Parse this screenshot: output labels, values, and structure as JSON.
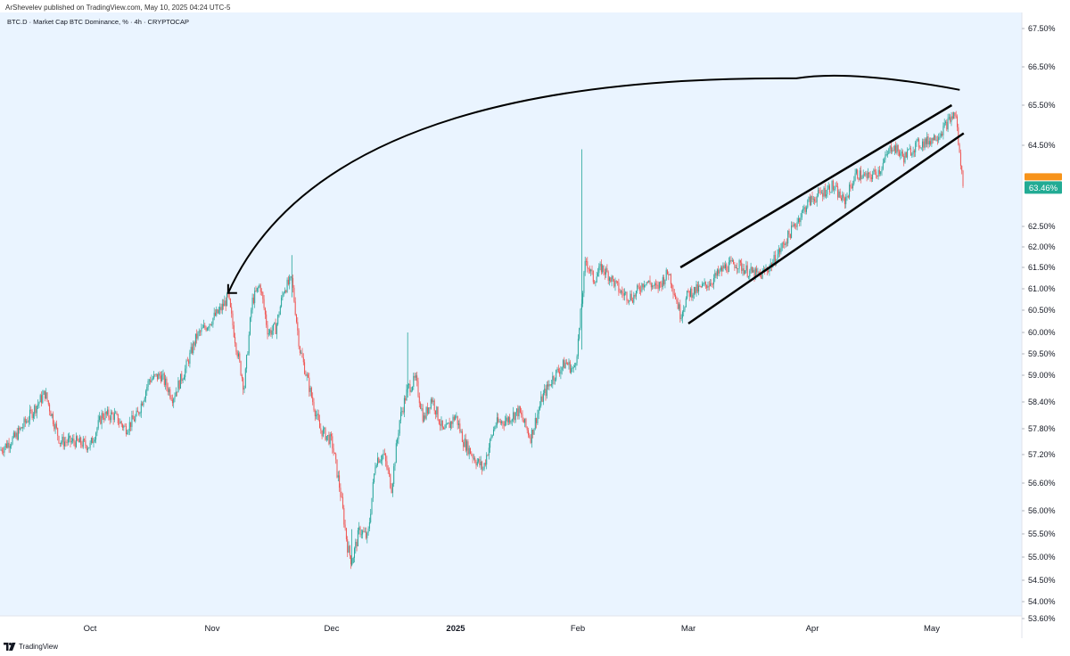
{
  "header": {
    "publish_line": "ArShevelev published on TradingView.com, May 10, 2025 04:24 UTC-5"
  },
  "chart_data": {
    "type": "candlestick",
    "title": "BTC.D · Market Cap BTC Dominance, % · 4h · CRYPTOCAP",
    "ylim": [
      53.3,
      67.6
    ],
    "y_ticks": [
      "67.50%",
      "66.50%",
      "65.50%",
      "64.50%",
      "62.50%",
      "62.00%",
      "61.50%",
      "61.00%",
      "60.50%",
      "60.00%",
      "59.50%",
      "59.00%",
      "58.40%",
      "57.80%",
      "57.20%",
      "56.60%",
      "56.00%",
      "55.50%",
      "55.00%",
      "54.50%",
      "54.00%",
      "53.60%"
    ],
    "x_ticks": [
      "Oct",
      "Nov",
      "Dec",
      "2025",
      "Feb",
      "Mar",
      "Apr",
      "May"
    ],
    "x_range": [
      "2024-09-13",
      "2025-05-20"
    ],
    "price_path": [
      [
        "2024-09-13",
        57.3
      ],
      [
        "2024-09-16",
        57.6
      ],
      [
        "2024-09-19",
        58.1
      ],
      [
        "2024-09-22",
        58.6
      ],
      [
        "2024-09-25",
        57.5
      ],
      [
        "2024-09-28",
        57.5
      ],
      [
        "2024-10-01",
        57.4
      ],
      [
        "2024-10-04",
        58.1
      ],
      [
        "2024-10-07",
        58.1
      ],
      [
        "2024-10-10",
        57.8
      ],
      [
        "2024-10-13",
        58.1
      ],
      [
        "2024-10-16",
        58.9
      ],
      [
        "2024-10-19",
        59.0
      ],
      [
        "2024-10-22",
        58.5
      ],
      [
        "2024-10-25",
        59.1
      ],
      [
        "2024-10-28",
        59.9
      ],
      [
        "2024-10-31",
        60.2
      ],
      [
        "2024-11-03",
        60.5
      ],
      [
        "2024-11-05",
        60.8
      ],
      [
        "2024-11-07",
        59.7
      ],
      [
        "2024-11-09",
        58.7
      ],
      [
        "2024-11-11",
        60.7
      ],
      [
        "2024-11-13",
        61.1
      ],
      [
        "2024-11-15",
        60.0
      ],
      [
        "2024-11-17",
        60.1
      ],
      [
        "2024-11-19",
        61.0
      ],
      [
        "2024-11-21",
        61.2
      ],
      [
        "2024-11-23",
        59.6
      ],
      [
        "2024-11-26",
        58.5
      ],
      [
        "2024-11-28",
        57.8
      ],
      [
        "2024-12-01",
        57.5
      ],
      [
        "2024-12-03",
        56.5
      ],
      [
        "2024-12-05",
        55.2
      ],
      [
        "2024-12-06",
        54.9
      ],
      [
        "2024-12-08",
        55.6
      ],
      [
        "2024-12-10",
        55.4
      ],
      [
        "2024-12-12",
        57.1
      ],
      [
        "2024-12-14",
        57.2
      ],
      [
        "2024-12-16",
        56.5
      ],
      [
        "2024-12-18",
        58.0
      ],
      [
        "2024-12-20",
        58.7
      ],
      [
        "2024-12-22",
        58.9
      ],
      [
        "2024-12-24",
        58.0
      ],
      [
        "2024-12-26",
        58.5
      ],
      [
        "2024-12-29",
        57.7
      ],
      [
        "2025-01-01",
        58.1
      ],
      [
        "2025-01-03",
        57.5
      ],
      [
        "2025-01-06",
        57.1
      ],
      [
        "2025-01-08",
        56.9
      ],
      [
        "2025-01-11",
        57.9
      ],
      [
        "2025-01-14",
        58.0
      ],
      [
        "2025-01-17",
        58.2
      ],
      [
        "2025-01-20",
        57.6
      ],
      [
        "2025-01-23",
        58.5
      ],
      [
        "2025-01-26",
        59.0
      ],
      [
        "2025-01-29",
        59.3
      ],
      [
        "2025-01-31",
        59.1
      ],
      [
        "2025-02-01",
        59.7
      ],
      [
        "2025-02-03",
        61.7
      ],
      [
        "2025-02-05",
        61.2
      ],
      [
        "2025-02-07",
        61.5
      ],
      [
        "2025-02-09",
        61.3
      ],
      [
        "2025-02-12",
        60.9
      ],
      [
        "2025-02-15",
        60.8
      ],
      [
        "2025-02-18",
        61.2
      ],
      [
        "2025-02-21",
        61.0
      ],
      [
        "2025-02-24",
        61.4
      ],
      [
        "2025-02-27",
        60.4
      ],
      [
        "2025-03-01",
        60.9
      ],
      [
        "2025-03-04",
        61.0
      ],
      [
        "2025-03-07",
        61.2
      ],
      [
        "2025-03-10",
        61.5
      ],
      [
        "2025-03-13",
        61.6
      ],
      [
        "2025-03-16",
        61.4
      ],
      [
        "2025-03-19",
        61.3
      ],
      [
        "2025-03-22",
        61.6
      ],
      [
        "2025-03-25",
        62.1
      ],
      [
        "2025-03-28",
        62.6
      ],
      [
        "2025-03-31",
        63.1
      ],
      [
        "2025-04-03",
        63.3
      ],
      [
        "2025-04-06",
        63.5
      ],
      [
        "2025-04-09",
        63.1
      ],
      [
        "2025-04-12",
        63.8
      ],
      [
        "2025-04-15",
        63.7
      ],
      [
        "2025-04-18",
        63.9
      ],
      [
        "2025-04-21",
        64.5
      ],
      [
        "2025-04-24",
        64.2
      ],
      [
        "2025-04-27",
        64.5
      ],
      [
        "2025-04-30",
        64.6
      ],
      [
        "2025-05-03",
        64.8
      ],
      [
        "2025-05-06",
        65.2
      ],
      [
        "2025-05-07",
        65.3
      ],
      [
        "2025-05-08",
        64.2
      ],
      [
        "2025-05-09",
        63.46
      ]
    ],
    "last_value_label": "63.46%",
    "colors": {
      "background": "#eaf4ff",
      "up": "#26a69a",
      "down": "#ef5350",
      "last_value_bg": "#22ab94",
      "last_value_bg_alt": "#f7931a",
      "drawings": "#000000"
    },
    "drawings": [
      {
        "type": "arc-arrow",
        "from": [
          "2025-05-08",
          65.9
        ],
        "via": [
          "2025-03-28",
          66.2
        ],
        "to": [
          "2024-11-05",
          60.9
        ]
      },
      {
        "type": "trendline",
        "from": [
          "2025-02-27",
          61.5
        ],
        "to": [
          "2025-05-06",
          65.5
        ]
      },
      {
        "type": "trendline",
        "from": [
          "2025-03-01",
          60.2
        ],
        "to": [
          "2025-05-09",
          64.8
        ]
      }
    ]
  },
  "footer": {
    "brand": "TradingView"
  }
}
